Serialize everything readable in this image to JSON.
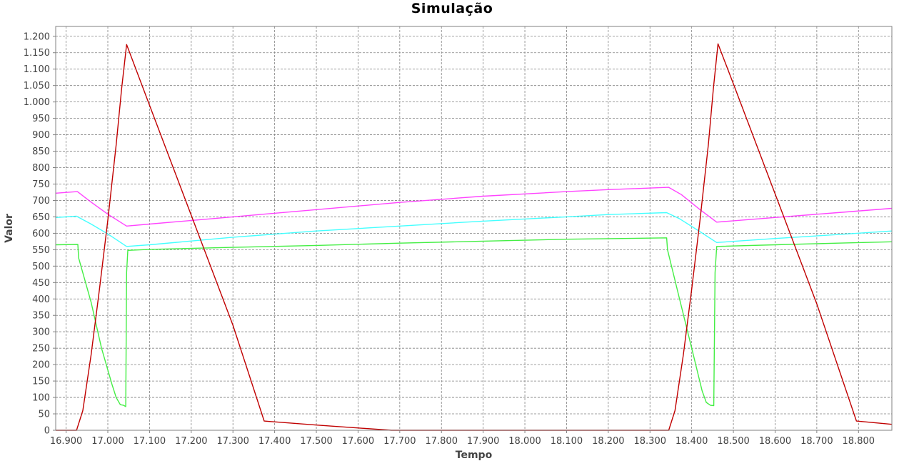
{
  "chart_data": {
    "type": "line",
    "title": "Simulação",
    "xlabel": "Tempo",
    "ylabel": "Valor",
    "xlim": [
      16.875,
      18.88
    ],
    "ylim": [
      0,
      1230
    ],
    "grid": true,
    "legend": "none",
    "x_ticks": [
      16.9,
      17.0,
      17.1,
      17.2,
      17.3,
      17.4,
      17.5,
      17.6,
      17.7,
      17.8,
      17.9,
      18.0,
      18.1,
      18.2,
      18.3,
      18.4,
      18.5,
      18.6,
      18.7,
      18.8
    ],
    "x_tick_labels": [
      "16.900",
      "17.000",
      "17.100",
      "17.200",
      "17.300",
      "17.400",
      "17.500",
      "17.600",
      "17.700",
      "17.800",
      "17.900",
      "18.000",
      "18.100",
      "18.200",
      "18.300",
      "18.400",
      "18.500",
      "18.600",
      "18.700",
      "18.800"
    ],
    "y_ticks": [
      0,
      50,
      100,
      150,
      200,
      250,
      300,
      350,
      400,
      450,
      500,
      550,
      600,
      650,
      700,
      750,
      800,
      850,
      900,
      950,
      1000,
      1050,
      1100,
      1150,
      1200
    ],
    "y_tick_labels": [
      "0",
      "50",
      "100",
      "150",
      "200",
      "250",
      "300",
      "350",
      "400",
      "450",
      "500",
      "550",
      "600",
      "650",
      "700",
      "750",
      "800",
      "850",
      "900",
      "950",
      "1.000",
      "1.050",
      "1.100",
      "1.150",
      "1.200"
    ],
    "series": [
      {
        "color": "#ff44ff",
        "points": [
          [
            16.875,
            722
          ],
          [
            16.927,
            727
          ],
          [
            16.96,
            695
          ],
          [
            17.0,
            658
          ],
          [
            17.045,
            622
          ],
          [
            17.1,
            628
          ],
          [
            17.3,
            650
          ],
          [
            17.5,
            672
          ],
          [
            17.7,
            694
          ],
          [
            17.9,
            713
          ],
          [
            18.1,
            727
          ],
          [
            18.2,
            733
          ],
          [
            18.345,
            740
          ],
          [
            18.375,
            718
          ],
          [
            18.42,
            672
          ],
          [
            18.46,
            634
          ],
          [
            18.6,
            648
          ],
          [
            18.75,
            663
          ],
          [
            18.88,
            676
          ]
        ]
      },
      {
        "color": "#44ffff",
        "points": [
          [
            16.875,
            648
          ],
          [
            16.925,
            652
          ],
          [
            16.96,
            628
          ],
          [
            17.0,
            598
          ],
          [
            17.045,
            560
          ],
          [
            17.1,
            565
          ],
          [
            17.3,
            588
          ],
          [
            17.5,
            607
          ],
          [
            17.7,
            622
          ],
          [
            17.9,
            637
          ],
          [
            18.1,
            650
          ],
          [
            18.2,
            657
          ],
          [
            18.34,
            663
          ],
          [
            18.37,
            645
          ],
          [
            18.42,
            605
          ],
          [
            18.46,
            572
          ],
          [
            18.6,
            584
          ],
          [
            18.75,
            596
          ],
          [
            18.88,
            607
          ]
        ]
      },
      {
        "color": "#44ee44",
        "points": [
          [
            16.875,
            565
          ],
          [
            16.928,
            566
          ],
          [
            16.93,
            525
          ],
          [
            16.96,
            390
          ],
          [
            16.985,
            250
          ],
          [
            17.01,
            140
          ],
          [
            17.02,
            100
          ],
          [
            17.03,
            78
          ],
          [
            17.038,
            76
          ],
          [
            17.043,
            72
          ],
          [
            17.045,
            480
          ],
          [
            17.048,
            548
          ],
          [
            17.1,
            551
          ],
          [
            17.3,
            557
          ],
          [
            17.5,
            563
          ],
          [
            17.7,
            570
          ],
          [
            17.9,
            576
          ],
          [
            18.1,
            582
          ],
          [
            18.34,
            586
          ],
          [
            18.342,
            550
          ],
          [
            18.37,
            405
          ],
          [
            18.4,
            250
          ],
          [
            18.425,
            120
          ],
          [
            18.435,
            85
          ],
          [
            18.445,
            76
          ],
          [
            18.453,
            75
          ],
          [
            18.456,
            480
          ],
          [
            18.46,
            560
          ],
          [
            18.6,
            565
          ],
          [
            18.75,
            570
          ],
          [
            18.88,
            574
          ]
        ]
      },
      {
        "color": "#c00000",
        "points": [
          [
            16.875,
            0
          ],
          [
            16.925,
            0
          ],
          [
            16.94,
            60
          ],
          [
            16.96,
            230
          ],
          [
            16.98,
            430
          ],
          [
            17.0,
            640
          ],
          [
            17.02,
            870
          ],
          [
            17.033,
            1040
          ],
          [
            17.045,
            1175
          ],
          [
            17.1,
            990
          ],
          [
            17.2,
            655
          ],
          [
            17.3,
            320
          ],
          [
            17.375,
            28
          ],
          [
            17.5,
            16
          ],
          [
            17.68,
            0
          ],
          [
            18.0,
            0
          ],
          [
            18.2,
            0
          ],
          [
            18.345,
            0
          ],
          [
            18.36,
            60
          ],
          [
            18.38,
            230
          ],
          [
            18.4,
            430
          ],
          [
            18.42,
            640
          ],
          [
            18.44,
            870
          ],
          [
            18.452,
            1040
          ],
          [
            18.463,
            1177
          ],
          [
            18.5,
            1055
          ],
          [
            18.6,
            720
          ],
          [
            18.7,
            385
          ],
          [
            18.795,
            28
          ],
          [
            18.88,
            18
          ]
        ]
      }
    ]
  }
}
